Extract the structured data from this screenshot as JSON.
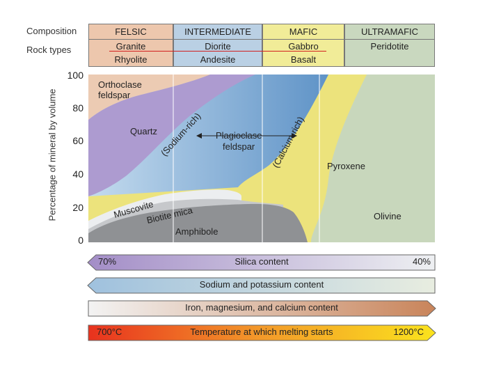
{
  "header": {
    "composition_label": "Composition",
    "rock_types_label": "Rock types",
    "columns": [
      {
        "name": "FELSIC",
        "rocks": [
          "Granite",
          "Rhyolite"
        ],
        "color": "#edc7ad"
      },
      {
        "name": "INTERMEDIATE",
        "rocks": [
          "Diorite",
          "Andesite"
        ],
        "color": "#bad0e4"
      },
      {
        "name": "MAFIC",
        "rocks": [
          "Gabbro",
          "Basalt"
        ],
        "color": "#f1ec98"
      },
      {
        "name": "ULTRAMAFIC",
        "rocks": [
          "Peridotite"
        ],
        "color": "#c9d8bf"
      }
    ]
  },
  "chart": {
    "y_axis_label": "Percentage of mineral by volume",
    "y_ticks": [
      "100",
      "80",
      "60",
      "40",
      "20",
      "0"
    ],
    "minerals": {
      "orthoclase_line1": "Orthoclase",
      "orthoclase_line2": "feldspar",
      "quartz": "Quartz",
      "sodium_rich": "(Sodium-rich)",
      "plagioclase_line1": "Plagioclase",
      "plagioclase_line2": "feldspar",
      "calcium_rich": "(Calcium-rich)",
      "pyroxene": "Pyroxene",
      "muscovite": "Muscovite",
      "biotite": "Biotite mica",
      "amphibole": "Amphibole",
      "olivine": "Olivine"
    },
    "colors": {
      "orthoclase": "#eccbb3",
      "quartz": "#ad9bd0",
      "plagioclase": "#7fa9d4",
      "pyroxene": "#ece37c",
      "olivine": "#c8d7bc",
      "amphibole": "#8f9194",
      "biotite": "#c6c8cb",
      "muscovite": "#eceef0"
    }
  },
  "bars": [
    {
      "left": "70%",
      "label": "Silica content",
      "right": "40%",
      "direction": "left"
    },
    {
      "left": "",
      "label": "Sodium and potassium content",
      "right": "",
      "direction": "left"
    },
    {
      "left": "",
      "label": "Iron, magnesium, and calcium content",
      "right": "",
      "direction": "right"
    },
    {
      "left": "700°C",
      "label": "Temperature at which melting starts",
      "right": "1200°C",
      "direction": "right"
    }
  ]
}
